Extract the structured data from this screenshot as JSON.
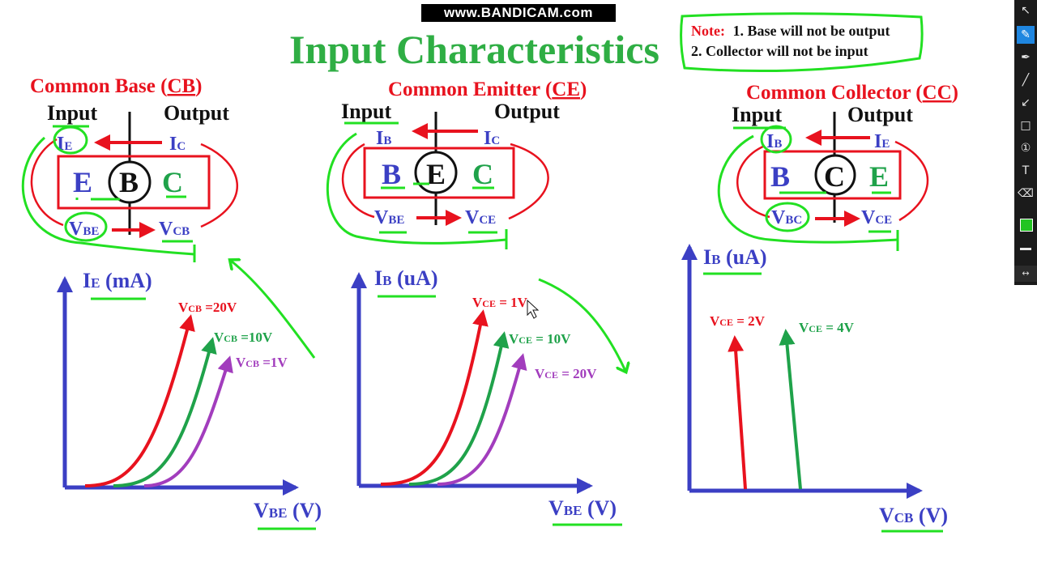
{
  "watermark": "www.BANDICAM.com",
  "title": "Input Characteristics",
  "note": {
    "label": "Note:",
    "line1": "1. Base will not be output",
    "line2": "2. Collector will not be input"
  },
  "common": {
    "input": "Input",
    "output": "Output"
  },
  "configs": [
    {
      "title_pre": "Common Base (",
      "title_abbr": "CB",
      "title_post": ")",
      "terminals": [
        "E",
        "B",
        "C"
      ],
      "in_cur": "I",
      "in_cur_sub": "E",
      "out_cur": "I",
      "out_cur_sub": "C",
      "in_volt": "V",
      "in_volt_sub": "BE",
      "out_volt": "V",
      "out_volt_sub": "CB"
    },
    {
      "title_pre": "Common Emitter (",
      "title_abbr": "CE",
      "title_post": ")",
      "terminals": [
        "B",
        "E",
        "C"
      ],
      "in_cur": "I",
      "in_cur_sub": "B",
      "out_cur": "I",
      "out_cur_sub": "C",
      "in_volt": "V",
      "in_volt_sub": "BE",
      "out_volt": "V",
      "out_volt_sub": "CE"
    },
    {
      "title_pre": "Common Collector (",
      "title_abbr": "CC",
      "title_post": ")",
      "terminals": [
        "B",
        "C",
        "E"
      ],
      "in_cur": "I",
      "in_cur_sub": "B",
      "out_cur": "I",
      "out_cur_sub": "E",
      "in_volt": "V",
      "in_volt_sub": "BC",
      "out_volt": "V",
      "out_volt_sub": "CE"
    }
  ],
  "graphs": [
    {
      "ylabel_main": "I",
      "ylabel_sub": "E",
      "ylabel_unit": " (mA)",
      "xlabel_main": "V",
      "xlabel_sub": "BE",
      "xlabel_unit": " (V)",
      "curves": [
        {
          "pre": "V",
          "sub": "CB",
          "post": " =20V",
          "color": "#e8121e"
        },
        {
          "pre": "V",
          "sub": "CB",
          "post": " =10V",
          "color": "#1fa24a"
        },
        {
          "pre": "V",
          "sub": "CB",
          "post": " =1V",
          "color": "#a23dbd"
        }
      ]
    },
    {
      "ylabel_main": "I",
      "ylabel_sub": "B",
      "ylabel_unit": " (uA)",
      "xlabel_main": "V",
      "xlabel_sub": "BE",
      "xlabel_unit": " (V)",
      "curves": [
        {
          "pre": "V",
          "sub": "CE",
          "post": " = 1V",
          "color": "#e8121e"
        },
        {
          "pre": "V",
          "sub": "CE",
          "post": " = 10V",
          "color": "#1fa24a"
        },
        {
          "pre": "V",
          "sub": "CE",
          "post": " = 20V",
          "color": "#a23dbd"
        }
      ]
    },
    {
      "ylabel_main": "I",
      "ylabel_sub": "B",
      "ylabel_unit": " (uA)",
      "xlabel_main": "V",
      "xlabel_sub": "CB",
      "xlabel_unit": " (V)",
      "curves": [
        {
          "pre": "V",
          "sub": "CE",
          "post": " = 2V",
          "color": "#e8121e"
        },
        {
          "pre": "V",
          "sub": "CE",
          "post": " = 4V",
          "color": "#1fa24a"
        }
      ]
    }
  ],
  "colors": {
    "red": "#e8121e",
    "green": "#1fa24a",
    "blue": "#3b3fc4",
    "purple": "#a23dbd",
    "annotation_green": "#22e022",
    "black": "#111111"
  },
  "toolbar": {
    "tools": [
      "cursor-icon",
      "pen-icon",
      "highlighter-icon",
      "line-icon",
      "arrow-icon",
      "rectangle-icon",
      "numbering-icon",
      "text-icon",
      "eraser-icon"
    ],
    "active_tool": "pen-icon",
    "selected_color": "#22c422"
  }
}
